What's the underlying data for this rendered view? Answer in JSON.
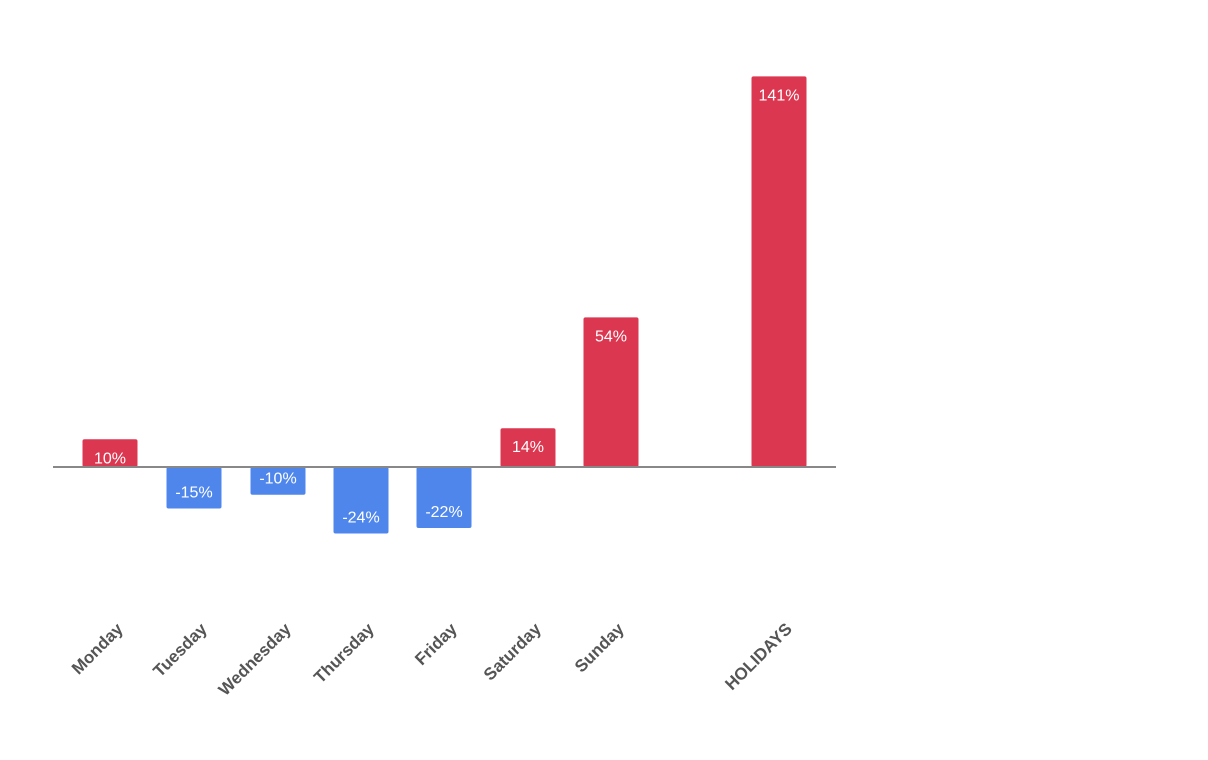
{
  "chart_data": {
    "type": "bar",
    "categories": [
      "Monday",
      "Tuesday",
      "Wednesday",
      "Thursday",
      "Friday",
      "Saturday",
      "Sunday",
      "HOLIDAYS"
    ],
    "values": [
      10,
      -15,
      -10,
      -24,
      -22,
      14,
      54,
      141
    ],
    "data_labels": [
      "10%",
      "-15%",
      "-10%",
      "-24%",
      "-22%",
      "14%",
      "54%",
      "141%"
    ],
    "title": "",
    "xlabel": "",
    "ylabel": "",
    "grid": false,
    "legend": "none",
    "colors": {
      "positive": "#dc3750",
      "negative": "#4f86ec",
      "baseline": "#888888",
      "category_text": "#555555",
      "data_label_text": "#ffffff"
    }
  }
}
